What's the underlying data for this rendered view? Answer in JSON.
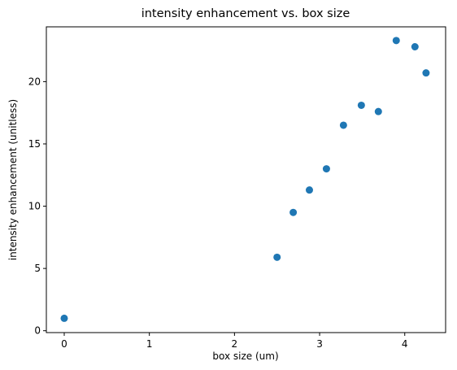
{
  "chart_data": {
    "type": "scatter",
    "title": "intensity enhancement vs. box size",
    "xlabel": "box size (um)",
    "ylabel": "intensity enhancement (unitless)",
    "xlim": [
      -0.21,
      4.48
    ],
    "ylim": [
      -0.15,
      24.4
    ],
    "xticks": [
      0,
      1,
      2,
      3,
      4
    ],
    "yticks": [
      0,
      5,
      10,
      15,
      20
    ],
    "grid": false,
    "marker_color": "#1f77b4",
    "points": [
      {
        "x": 0.0,
        "y": 1.0
      },
      {
        "x": 2.5,
        "y": 5.9
      },
      {
        "x": 2.69,
        "y": 9.5
      },
      {
        "x": 2.88,
        "y": 11.3
      },
      {
        "x": 3.08,
        "y": 13.0
      },
      {
        "x": 3.28,
        "y": 16.5
      },
      {
        "x": 3.49,
        "y": 18.1
      },
      {
        "x": 3.69,
        "y": 17.6
      },
      {
        "x": 3.9,
        "y": 23.3
      },
      {
        "x": 4.12,
        "y": 22.8
      },
      {
        "x": 4.25,
        "y": 20.7
      }
    ]
  }
}
